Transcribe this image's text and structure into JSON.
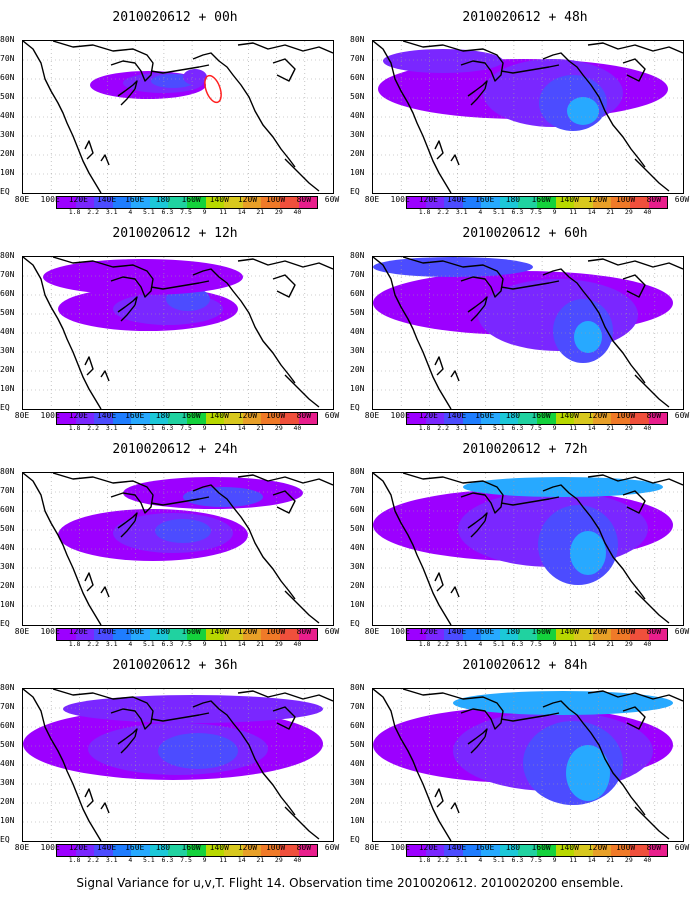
{
  "figure": {
    "caption": "Signal Variance for u,v,T. Flight 14. Observation time 2010020612. 2010020200 ensemble."
  },
  "panels": [
    {
      "title": "2010020612 + 00h",
      "lead_hours": 0
    },
    {
      "title": "2010020612 + 48h",
      "lead_hours": 48
    },
    {
      "title": "2010020612 + 12h",
      "lead_hours": 12
    },
    {
      "title": "2010020612 + 60h",
      "lead_hours": 60
    },
    {
      "title": "2010020612 + 24h",
      "lead_hours": 24
    },
    {
      "title": "2010020612 + 72h",
      "lead_hours": 72
    },
    {
      "title": "2010020612 + 36h",
      "lead_hours": 36
    },
    {
      "title": "2010020612 + 84h",
      "lead_hours": 84
    }
  ],
  "lat_labels": [
    "80N",
    "70N",
    "60N",
    "50N",
    "40N",
    "30N",
    "20N",
    "10N",
    "EQ"
  ],
  "lon_labels": [
    "80E",
    "100E",
    "120E",
    "140E",
    "160E",
    "180",
    "160W",
    "140W",
    "120W",
    "100W",
    "80W",
    "60W"
  ],
  "colorbar": {
    "labels": [
      "1.8",
      "2.2",
      "3.1",
      "4",
      "5.1",
      "6.3",
      "7.5",
      "9",
      "11",
      "14",
      "21",
      "29",
      "40"
    ],
    "colors": [
      "#9c00ff",
      "#7a27ff",
      "#4c4cff",
      "#1f7dff",
      "#27a9ff",
      "#1cc8d8",
      "#20d2a0",
      "#14d23c",
      "#b8d800",
      "#d8c81e",
      "#e8a028",
      "#f07a28",
      "#f0503c",
      "#e81e8c"
    ]
  },
  "colors": {
    "shade_low": "#9c00ff",
    "shade_mid": "#7a27ff",
    "shade_high": "#4c4cff",
    "shade_higher": "#27a9ff",
    "coast": "#000000",
    "grid": "#a0a0a0",
    "observation_marker": "#ff2020"
  }
}
